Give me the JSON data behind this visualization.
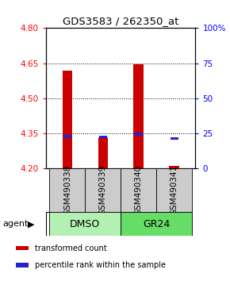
{
  "title": "GDS3583 / 262350_at",
  "samples": [
    "GSM490338",
    "GSM490339",
    "GSM490340",
    "GSM490341"
  ],
  "bar_bottom": 4.2,
  "bar_tops": [
    4.62,
    4.335,
    4.645,
    4.21
  ],
  "blue_y": [
    4.337,
    4.336,
    4.348,
    4.328
  ],
  "ylim_left": [
    4.2,
    4.8
  ],
  "ylim_right": [
    0,
    100
  ],
  "yticks_left": [
    4.2,
    4.35,
    4.5,
    4.65,
    4.8
  ],
  "yticks_right": [
    0,
    25,
    50,
    75,
    100
  ],
  "ytick_right_labels": [
    "0",
    "25",
    "50",
    "75",
    "100%"
  ],
  "bar_color": "#cc0000",
  "blue_color": "#2222cc",
  "grid_yticks": [
    4.35,
    4.5,
    4.65
  ],
  "agent_labels": [
    "DMSO",
    "GR24"
  ],
  "agent_colors": [
    "#b3f0b3",
    "#66dd66"
  ],
  "gsm_bg_color": "#cccccc",
  "legend_items": [
    {
      "color": "#cc0000",
      "label": "transformed count"
    },
    {
      "color": "#2222cc",
      "label": "percentile rank within the sample"
    }
  ],
  "figsize": [
    2.9,
    3.54
  ],
  "dpi": 100
}
